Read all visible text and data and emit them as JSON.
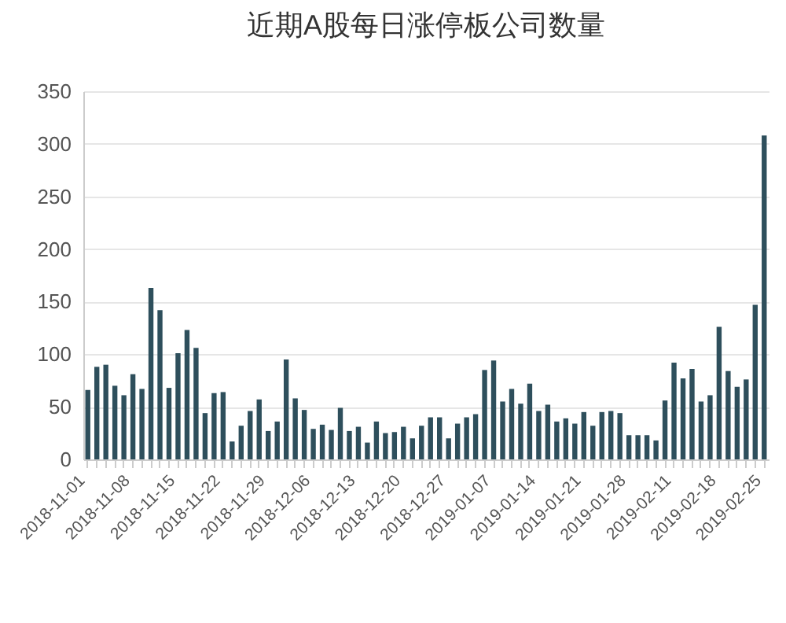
{
  "chart_data": {
    "type": "bar",
    "title": "近期A股每日涨停板公司数量",
    "categories": [
      "2018-11-01",
      null,
      null,
      null,
      null,
      "2018-11-08",
      null,
      null,
      null,
      null,
      "2018-11-15",
      null,
      null,
      null,
      null,
      "2018-11-22",
      null,
      null,
      null,
      null,
      "2018-11-29",
      null,
      null,
      null,
      null,
      "2018-12-06",
      null,
      null,
      null,
      null,
      "2018-12-13",
      null,
      null,
      null,
      null,
      "2018-12-20",
      null,
      null,
      null,
      null,
      "2018-12-27",
      null,
      null,
      null,
      null,
      "2019-01-07",
      null,
      null,
      null,
      null,
      "2019-01-14",
      null,
      null,
      null,
      null,
      "2019-01-21",
      null,
      null,
      null,
      null,
      "2019-01-28",
      null,
      null,
      null,
      null,
      "2019-02-11",
      null,
      null,
      null,
      null,
      "2019-02-18",
      null,
      null,
      null,
      null,
      "2019-02-25"
    ],
    "values": [
      66,
      88,
      90,
      70,
      61,
      81,
      67,
      163,
      142,
      68,
      101,
      123,
      106,
      44,
      63,
      64,
      17,
      32,
      46,
      57,
      27,
      36,
      95,
      58,
      47,
      29,
      33,
      28,
      49,
      27,
      31,
      16,
      36,
      25,
      26,
      31,
      20,
      32,
      40,
      40,
      20,
      34,
      40,
      43,
      85,
      94,
      55,
      67,
      53,
      72,
      46,
      52,
      36,
      39,
      34,
      45,
      32,
      45,
      46,
      44,
      23,
      23,
      23,
      18,
      56,
      92,
      77,
      86,
      55,
      61,
      126,
      84,
      69,
      76,
      147,
      308
    ],
    "color": "#2e4f5c",
    "ylim": [
      0,
      350
    ],
    "yticks": [
      0,
      50,
      100,
      150,
      200,
      250,
      300,
      350
    ],
    "grid": "y"
  }
}
